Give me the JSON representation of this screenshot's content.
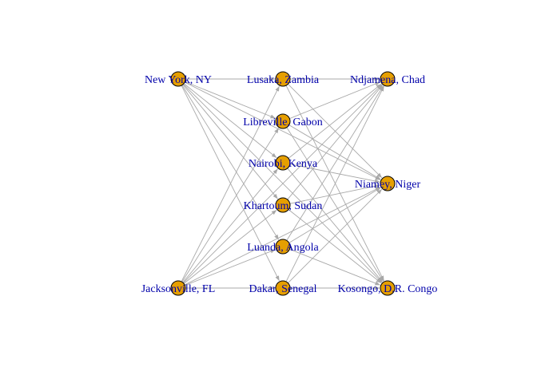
{
  "graph": {
    "node_color": "#e69f00",
    "edge_color": "#a8a8a8",
    "label_color": "#0000aa",
    "nodes": [
      {
        "id": "ny",
        "label": "New York, NY"
      },
      {
        "id": "jax",
        "label": "Jacksonville, FL"
      },
      {
        "id": "lusaka",
        "label": "Lusaka, Zambia"
      },
      {
        "id": "libreville",
        "label": "Libreville, Gabon"
      },
      {
        "id": "nairobi",
        "label": "Nairobi, Kenya"
      },
      {
        "id": "khartoum",
        "label": "Khartoum, Sudan"
      },
      {
        "id": "luanda",
        "label": "Luanda, Angola"
      },
      {
        "id": "dakar",
        "label": "Dakar, Senegal"
      },
      {
        "id": "ndjamena",
        "label": "Ndjamena, Chad"
      },
      {
        "id": "niamey",
        "label": "Niamey, Niger"
      },
      {
        "id": "kosongo",
        "label": "Kosongo, D.R. Congo"
      }
    ],
    "edges": [
      [
        "ny",
        "lusaka"
      ],
      [
        "ny",
        "libreville"
      ],
      [
        "ny",
        "nairobi"
      ],
      [
        "ny",
        "khartoum"
      ],
      [
        "ny",
        "luanda"
      ],
      [
        "ny",
        "dakar"
      ],
      [
        "ny",
        "ndjamena"
      ],
      [
        "ny",
        "niamey"
      ],
      [
        "ny",
        "kosongo"
      ],
      [
        "jax",
        "lusaka"
      ],
      [
        "jax",
        "libreville"
      ],
      [
        "jax",
        "nairobi"
      ],
      [
        "jax",
        "khartoum"
      ],
      [
        "jax",
        "luanda"
      ],
      [
        "jax",
        "dakar"
      ],
      [
        "jax",
        "ndjamena"
      ],
      [
        "jax",
        "niamey"
      ],
      [
        "jax",
        "kosongo"
      ],
      [
        "lusaka",
        "ndjamena"
      ],
      [
        "lusaka",
        "niamey"
      ],
      [
        "lusaka",
        "kosongo"
      ],
      [
        "libreville",
        "ndjamena"
      ],
      [
        "libreville",
        "niamey"
      ],
      [
        "libreville",
        "kosongo"
      ],
      [
        "nairobi",
        "ndjamena"
      ],
      [
        "nairobi",
        "niamey"
      ],
      [
        "nairobi",
        "kosongo"
      ],
      [
        "khartoum",
        "ndjamena"
      ],
      [
        "khartoum",
        "niamey"
      ],
      [
        "khartoum",
        "kosongo"
      ],
      [
        "luanda",
        "ndjamena"
      ],
      [
        "luanda",
        "niamey"
      ],
      [
        "luanda",
        "kosongo"
      ],
      [
        "dakar",
        "ndjamena"
      ],
      [
        "dakar",
        "niamey"
      ],
      [
        "dakar",
        "kosongo"
      ]
    ]
  }
}
